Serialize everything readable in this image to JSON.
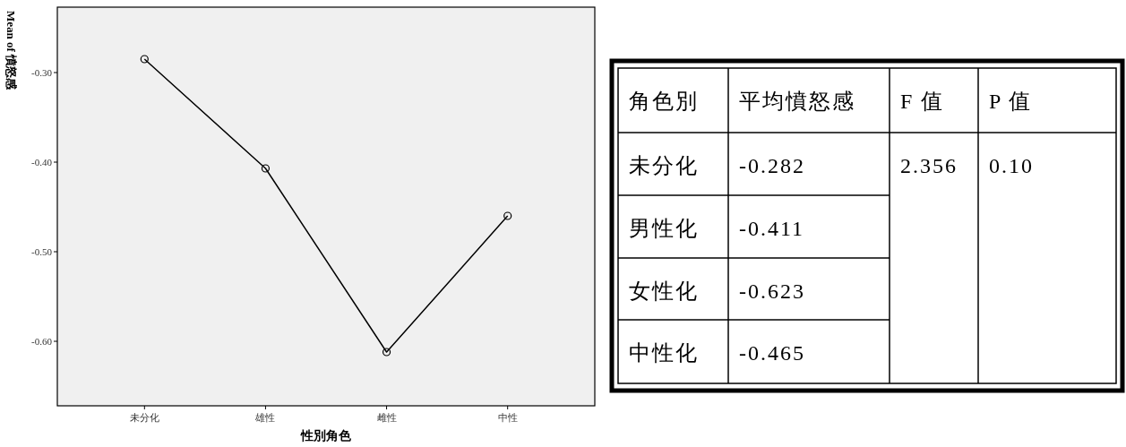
{
  "chart_data": [
    {
      "type": "line",
      "xlabel": "性別角色",
      "ylabel": "Mean of 憤怒感",
      "categories": [
        "未分化",
        "雄性",
        "雌性",
        "中性"
      ],
      "series": [
        {
          "color": "#000000",
          "values": [
            -0.285,
            -0.407,
            -0.612,
            -0.46
          ]
        }
      ],
      "ylim": [
        -0.672,
        -0.227
      ],
      "yticks": [
        {
          "value": -0.3,
          "label": "-0.30"
        },
        {
          "value": -0.4,
          "label": "-0.40"
        },
        {
          "value": -0.5,
          "label": "-0.50"
        },
        {
          "value": -0.6,
          "label": "-0.60"
        }
      ],
      "marker": "circle",
      "line_style": "solid"
    },
    {
      "type": "other",
      "annotations": [
        "角色別",
        "平均憤怒感",
        "F 值",
        "P 值",
        "未分化",
        "-0.282",
        "2.356",
        "0.10",
        "男性化",
        "-0.411",
        "女性化",
        "-0.623",
        "中性化",
        "-0.465"
      ]
    }
  ]
}
